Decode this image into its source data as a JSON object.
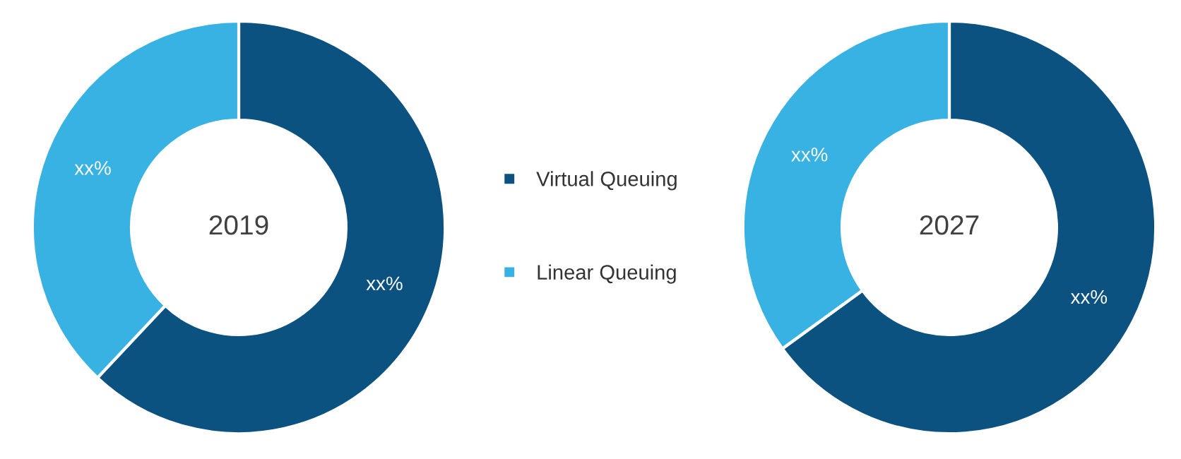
{
  "chart_data": [
    {
      "type": "donut",
      "title": "2019",
      "categories": [
        "Virtual Queuing",
        "Linear Queuing"
      ],
      "values": [
        62,
        38
      ],
      "colors": [
        "#0b5281",
        "#38b1e3"
      ],
      "value_labels": [
        "xx%",
        "xx%"
      ],
      "legend": "right"
    },
    {
      "type": "donut",
      "title": "2027",
      "categories": [
        null,
        null
      ],
      "values": [
        65,
        35
      ],
      "colors": [
        "#0b5281",
        "#38b1e3"
      ],
      "value_labels": [
        "xx%",
        "xx%"
      ]
    }
  ]
}
